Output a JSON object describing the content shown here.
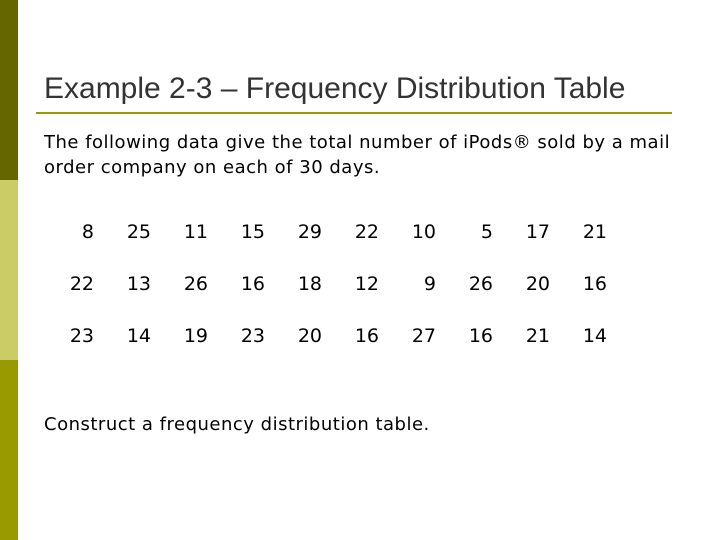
{
  "slide": {
    "title": "Example 2-3 – Frequency Distribution Table",
    "intro": "The following data give the total number of iPods® sold by a mail order company on each of 30 days.",
    "prompt": "Construct a frequency distribution table."
  },
  "table": {
    "rows": [
      [
        "8",
        "25",
        "11",
        "15",
        "29",
        "22",
        "10",
        "5",
        "17",
        "21"
      ],
      [
        "22",
        "13",
        "26",
        "16",
        "18",
        "12",
        "9",
        "26",
        "20",
        "16"
      ],
      [
        "23",
        "14",
        "19",
        "23",
        "20",
        "16",
        "27",
        "16",
        "21",
        "14"
      ]
    ]
  },
  "colors": {
    "bar_top": "#666600",
    "bar_mid": "#cccc66",
    "bar_bottom": "#999900",
    "title": "#333333",
    "rule": "#999900"
  }
}
